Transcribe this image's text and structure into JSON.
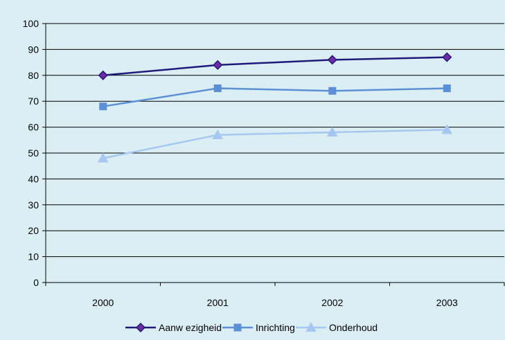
{
  "chart_data": {
    "type": "line",
    "title": "",
    "xlabel": "",
    "ylabel": "",
    "categories": [
      "2000",
      "2001",
      "2002",
      "2003"
    ],
    "ylim": [
      0,
      100
    ],
    "yticks": [
      0,
      10,
      20,
      30,
      40,
      50,
      60,
      70,
      80,
      90,
      100
    ],
    "grid": true,
    "legend_position": "bottom",
    "series": [
      {
        "name": "Aanw ezigheid",
        "values": [
          80,
          84,
          86,
          87
        ],
        "color": "#1f1a7a",
        "marker": "diamond"
      },
      {
        "name": "Inrichting",
        "values": [
          68,
          75,
          74,
          75
        ],
        "color": "#5b8fd6",
        "marker": "square"
      },
      {
        "name": "Onderhoud",
        "values": [
          48,
          57,
          58,
          59
        ],
        "color": "#a6c8f0",
        "marker": "triangle"
      }
    ]
  }
}
